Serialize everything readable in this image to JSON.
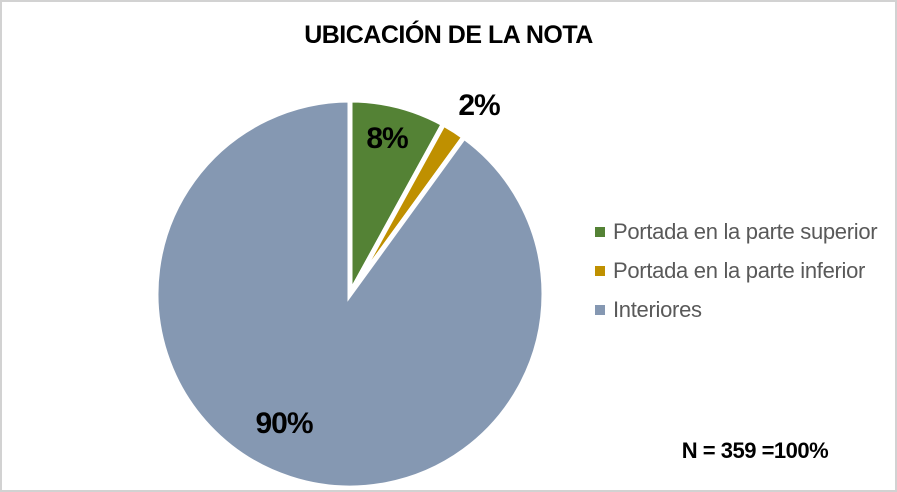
{
  "chart_data": {
    "type": "pie",
    "title": "UBICACIÓN DE LA NOTA",
    "categories": [
      "Portada en la parte superior",
      "Portada en la parte inferior",
      "Interiores"
    ],
    "values": [
      8,
      2,
      90
    ],
    "data_labels": [
      "8%",
      "2%",
      "90%"
    ],
    "colors": [
      "#548235",
      "#BF9000",
      "#8598B2"
    ],
    "slice_separator_color": "#FFFFFF",
    "start_angle_deg": 0,
    "direction": "clockwise",
    "legend_position": "right",
    "annotation": "N = 359 =100%"
  },
  "legend": {
    "text_color": "#595959",
    "items": [
      {
        "label": "Portada en la parte superior",
        "color": "#548235"
      },
      {
        "label": "Portada en la parte inferior",
        "color": "#BF9000"
      },
      {
        "label": "Interiores",
        "color": "#8598B2"
      }
    ]
  }
}
